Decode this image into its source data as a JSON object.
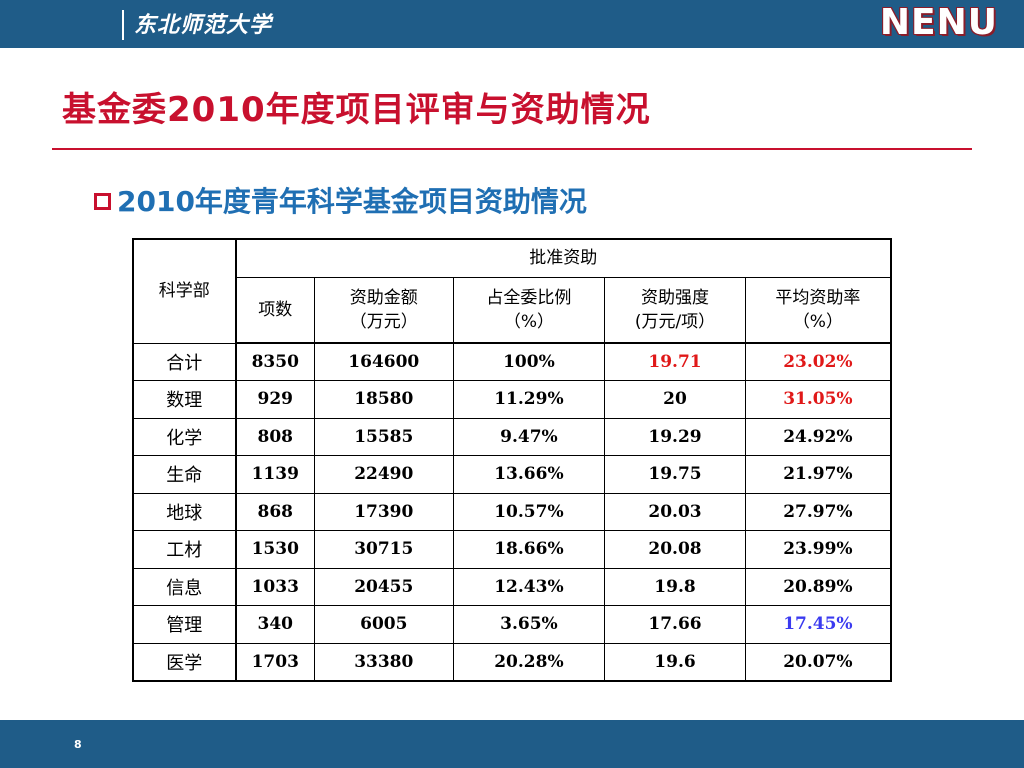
{
  "header": {
    "logo_text": "东北师范大学",
    "brand": "NENU"
  },
  "title": "基金委2010年度项目评审与资助情况",
  "subtitle": "2010年度青年科学基金项目资助情况",
  "table": {
    "col_dept": "科学部",
    "col_group": "批准资助",
    "col_count": "项数",
    "col_amount": "资助金额\n（万元）",
    "col_share": "占全委比例\n（%）",
    "col_intensity": "资助强度\n(万元/项）",
    "col_rate": "平均资助率\n（%）",
    "rows": [
      {
        "dept": "合计",
        "count": "8350",
        "amount": "164600",
        "share": "100%",
        "intensity": "19.71",
        "rate": "23.02%"
      },
      {
        "dept": "数理",
        "count": "929",
        "amount": "18580",
        "share": "11.29%",
        "intensity": "20",
        "rate": "31.05%"
      },
      {
        "dept": "化学",
        "count": "808",
        "amount": "15585",
        "share": "9.47%",
        "intensity": "19.29",
        "rate": "24.92%"
      },
      {
        "dept": "生命",
        "count": "1139",
        "amount": "22490",
        "share": "13.66%",
        "intensity": "19.75",
        "rate": "21.97%"
      },
      {
        "dept": "地球",
        "count": "868",
        "amount": "17390",
        "share": "10.57%",
        "intensity": "20.03",
        "rate": "27.97%"
      },
      {
        "dept": "工材",
        "count": "1530",
        "amount": "30715",
        "share": "18.66%",
        "intensity": "20.08",
        "rate": "23.99%"
      },
      {
        "dept": "信息",
        "count": "1033",
        "amount": "20455",
        "share": "12.43%",
        "intensity": "19.8",
        "rate": "20.89%"
      },
      {
        "dept": "管理",
        "count": "340",
        "amount": "6005",
        "share": "3.65%",
        "intensity": "17.66",
        "rate": "17.45%"
      },
      {
        "dept": "医学",
        "count": "1703",
        "amount": "33380",
        "share": "20.28%",
        "intensity": "19.6",
        "rate": "20.07%"
      }
    ]
  },
  "highlight_colors": {
    "red": "#e01818",
    "blue": "#3a3af0"
  },
  "page_number": "8"
}
